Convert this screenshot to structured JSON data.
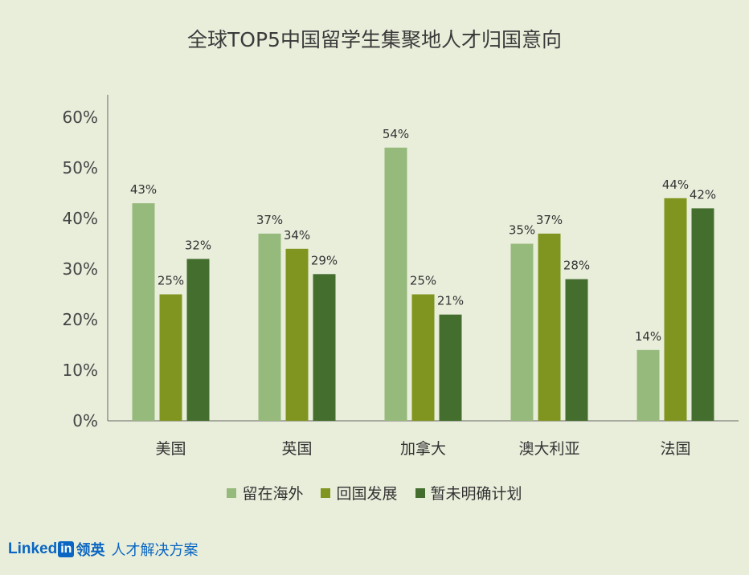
{
  "chart_data": {
    "type": "bar",
    "title": "全球TOP5中国留学生集聚地人才归国意向",
    "categories": [
      "美国",
      "英国",
      "加拿大",
      "澳大利亚",
      "法国"
    ],
    "series": [
      {
        "name": "留在海外",
        "color": "#96ba7c",
        "values": [
          43,
          37,
          54,
          35,
          14
        ]
      },
      {
        "name": "回国发展",
        "color": "#80951f",
        "values": [
          25,
          34,
          25,
          37,
          44
        ]
      },
      {
        "name": "暂未明确计划",
        "color": "#446e2e",
        "values": [
          32,
          29,
          21,
          28,
          42
        ]
      }
    ],
    "ylim": [
      0,
      60
    ],
    "yticks": [
      "0%",
      "10%",
      "20%",
      "30%",
      "40%",
      "50%",
      "60%"
    ],
    "value_suffix": "%",
    "legend_position": "bottom",
    "grid": false
  },
  "footer": {
    "brand_linked": "Linked",
    "brand_in": "in",
    "brand_name": "领英",
    "tagline": "人才解决方案"
  }
}
